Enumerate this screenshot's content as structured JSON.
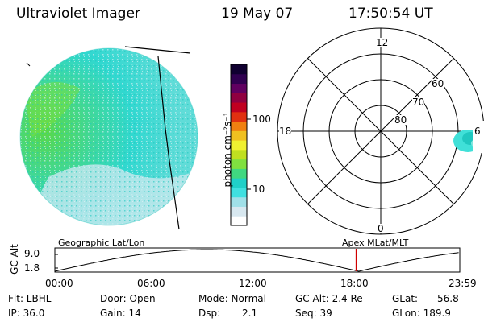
{
  "header": {
    "title": "Ultraviolet Imager",
    "date": "19 May 07",
    "time": "17:50:54 UT"
  },
  "colorbar": {
    "unit_label": "photon cm⁻²s⁻¹",
    "ticks": [
      "100",
      "10"
    ],
    "scale": "log",
    "colors": [
      "#ffffff",
      "#d8e8f0",
      "#a0e0e8",
      "#40e0e0",
      "#20d0c8",
      "#40d880",
      "#80e040",
      "#c0e020",
      "#f0f030",
      "#f0c020",
      "#f08010",
      "#e03010",
      "#c00020",
      "#900040",
      "#600060",
      "#300050",
      "#100030"
    ]
  },
  "polar": {
    "labels": {
      "top": "12",
      "left": "18",
      "right": "6",
      "bottom": "0"
    },
    "rings": [
      "60",
      "70",
      "80"
    ]
  },
  "timeline": {
    "y_axis_label": "GC Alt",
    "y_ticks": [
      "9.0",
      "1.8"
    ],
    "left_title": "Geographic Lat/Lon",
    "right_title": "Apex MLat/MLT",
    "x_ticks": [
      "00:00",
      "06:00",
      "12:00",
      "18:00",
      "23:59"
    ],
    "marker_time": "17:50:54"
  },
  "info": {
    "flt": "Flt: LBHL",
    "ip": "IP: 36.0",
    "door": "Door: Open",
    "gain": "Gain: 14",
    "mode": "Mode: Normal",
    "dsp": "Dsp:",
    "dsp_val": "2.1",
    "gcalt": "GC Alt: 2.4 Re",
    "seq": "Seq: 39",
    "glat": "GLat:",
    "glat_val": "56.8",
    "glon": "GLon: 189.9"
  }
}
